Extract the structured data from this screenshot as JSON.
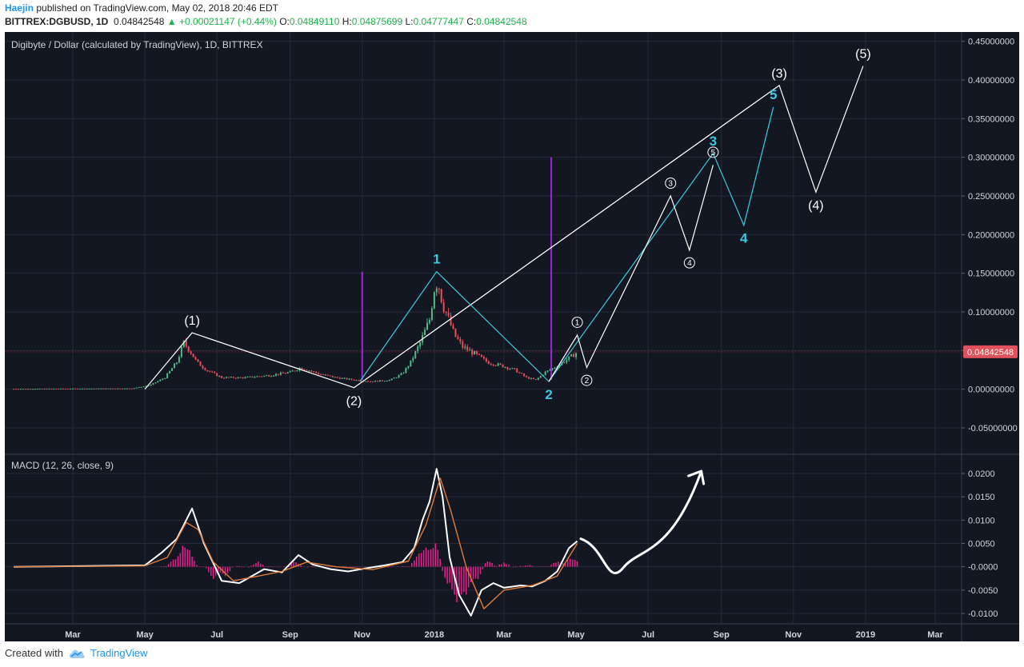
{
  "header": {
    "author": "Haejin",
    "published": "published on TradingView.com, May 02, 2018 20:46 EDT",
    "symbol": "BITTREX:DGBUSD, 1D",
    "last": "0.04842548",
    "change": "▲ +0.00021147 (+0.44%)",
    "open_label": "O:",
    "open": "0.04849110",
    "high_label": "H:",
    "high": "0.04875699",
    "low_label": "L:",
    "low": "0.04777447",
    "close_label": "C:",
    "close": "0.04842548"
  },
  "footer": {
    "created_with": "Created with",
    "brand": "TradingView",
    "logo_icon": "tradingview-cloud-icon"
  },
  "colors": {
    "background": "#131722",
    "grid": "#252a36",
    "cyan": "#3bc9e0",
    "white": "#ffffff",
    "purple": "#9c27d8",
    "price_badge": "#e0515c",
    "up_candle": "#53b987",
    "down_candle": "#eb4d5c",
    "macd_signal": "#e07b39",
    "histogram": "#e91e8c"
  },
  "chart_data": [
    {
      "type": "line",
      "title": "Digibyte / Dollar (calculated by TradingView), 1D, BITTREX",
      "x_ticks": [
        "Mar",
        "May",
        "Jul",
        "Sep",
        "Nov",
        "2018",
        "Mar",
        "May",
        "Jul",
        "Sep",
        "Nov",
        "2019",
        "Mar"
      ],
      "y_ticks": [
        "0.45000000",
        "0.40000000",
        "0.35000000",
        "0.30000000",
        "0.25000000",
        "0.20000000",
        "0.15000000",
        "0.10000000",
        "0.05000000",
        "0.00000000",
        "-0.05000000"
      ],
      "ylim": [
        -0.083,
        0.455
      ],
      "current_price": 0.04842548,
      "current_price_label": "0.04842548",
      "price_series": {
        "name": "DGBUSD",
        "x": [
          "2017-01-10",
          "2017-04-20",
          "2017-05-05",
          "2017-05-18",
          "2017-05-28",
          "2017-06-03",
          "2017-06-08",
          "2017-06-14",
          "2017-06-22",
          "2017-07-05",
          "2017-07-25",
          "2017-08-15",
          "2017-09-01",
          "2017-09-10",
          "2017-09-25",
          "2017-10-10",
          "2017-10-25",
          "2017-11-10",
          "2017-11-25",
          "2017-12-05",
          "2017-12-12",
          "2017-12-20",
          "2017-12-28",
          "2018-01-01",
          "2018-01-04",
          "2018-01-08",
          "2018-01-12",
          "2018-01-18",
          "2018-01-25",
          "2018-02-05",
          "2018-02-15",
          "2018-02-28",
          "2018-03-10",
          "2018-03-20",
          "2018-03-28",
          "2018-04-05",
          "2018-04-15",
          "2018-04-25",
          "2018-05-02"
        ],
        "close": [
          0.0005,
          0.001,
          0.005,
          0.015,
          0.035,
          0.06,
          0.05,
          0.035,
          0.025,
          0.015,
          0.015,
          0.018,
          0.022,
          0.028,
          0.02,
          0.015,
          0.012,
          0.01,
          0.012,
          0.02,
          0.035,
          0.06,
          0.09,
          0.13,
          0.14,
          0.11,
          0.095,
          0.07,
          0.055,
          0.045,
          0.035,
          0.03,
          0.025,
          0.015,
          0.012,
          0.022,
          0.03,
          0.04,
          0.048
        ]
      },
      "elliott_waves": [
        {
          "name": "primary",
          "color": "#ffffff",
          "x": [
            "2017-05-01",
            "2017-06-10",
            "2017-10-25",
            "2018-10-20",
            "2018-11-20",
            "2018-12-30"
          ],
          "y": [
            0.0,
            0.073,
            0.002,
            0.393,
            0.255,
            0.418
          ],
          "labels": [
            {
              "text": "(1)",
              "i": 1
            },
            {
              "text": "(2)",
              "i": 2
            },
            {
              "text": "(3)",
              "i": 3
            },
            {
              "text": "(4)",
              "i": 4
            },
            {
              "text": "(5)",
              "i": 5
            }
          ]
        },
        {
          "name": "intermediate",
          "color": "#3bc9e0",
          "x": [
            "2017-10-30",
            "2018-01-03",
            "2018-04-08",
            "2018-08-25",
            "2018-09-20",
            "2018-10-15"
          ],
          "y": [
            0.01,
            0.152,
            0.01,
            0.305,
            0.212,
            0.365
          ],
          "labels": [
            {
              "text": "1",
              "i": 1
            },
            {
              "text": "2",
              "i": 2
            },
            {
              "text": "3",
              "i": 3
            },
            {
              "text": "4",
              "i": 4
            },
            {
              "text": "5",
              "i": 5
            }
          ]
        },
        {
          "name": "minor",
          "color": "#ffffff",
          "x": [
            "2018-04-08",
            "2018-05-02",
            "2018-05-10",
            "2018-07-20",
            "2018-08-05",
            "2018-08-25"
          ],
          "y": [
            0.01,
            0.07,
            0.028,
            0.25,
            0.18,
            0.29
          ],
          "labels": [
            {
              "text": "1",
              "i": 1
            },
            {
              "text": "2",
              "i": 2
            },
            {
              "text": "3",
              "i": 3
            },
            {
              "text": "4",
              "i": 4
            },
            {
              "text": "5",
              "i": 5
            }
          ]
        }
      ],
      "channel_line": {
        "x": [
          "2017-10-25",
          "2018-10-20"
        ],
        "y": [
          0.002,
          0.393
        ]
      },
      "vertical_markers": [
        {
          "x": "2017-11-01",
          "y": [
            0.012,
            0.152
          ]
        },
        {
          "x": "2018-04-10",
          "y": [
            0.012,
            0.3
          ]
        }
      ]
    },
    {
      "type": "line",
      "title": "MACD (12, 26, close, 9)",
      "y_ticks": [
        "0.0200",
        "0.0150",
        "0.0100",
        "0.0050",
        "-0.0000",
        "-0.0050",
        "-0.0100"
      ],
      "ylim": [
        -0.0113,
        0.0238
      ],
      "series": [
        {
          "name": "MACD",
          "color": "#ffffff",
          "x": [
            "2017-01-10",
            "2017-05-01",
            "2017-05-15",
            "2017-05-28",
            "2017-06-10",
            "2017-06-20",
            "2017-07-05",
            "2017-07-20",
            "2017-08-10",
            "2017-08-25",
            "2017-09-08",
            "2017-09-20",
            "2017-10-05",
            "2017-10-20",
            "2017-11-05",
            "2017-11-20",
            "2017-12-05",
            "2017-12-15",
            "2017-12-22",
            "2017-12-28",
            "2018-01-03",
            "2018-01-08",
            "2018-01-14",
            "2018-01-22",
            "2018-02-01",
            "2018-02-10",
            "2018-02-20",
            "2018-03-01",
            "2018-03-15",
            "2018-03-25",
            "2018-04-05",
            "2018-04-15",
            "2018-04-25",
            "2018-05-02"
          ],
          "y": [
            0,
            0.0003,
            0.003,
            0.006,
            0.0125,
            0.005,
            -0.003,
            -0.0035,
            -0.0005,
            -0.0012,
            0.0025,
            0.0005,
            -0.0005,
            -0.001,
            -0.0003,
            0.0003,
            0.001,
            0.004,
            0.01,
            0.014,
            0.021,
            0.015,
            0.002,
            -0.006,
            -0.0105,
            -0.005,
            -0.0035,
            -0.0045,
            -0.004,
            -0.0042,
            -0.003,
            -0.001,
            0.004,
            0.0055
          ]
        },
        {
          "name": "Signal",
          "color": "#e07b39",
          "x": [
            "2017-01-10",
            "2017-05-01",
            "2017-05-20",
            "2017-06-05",
            "2017-06-15",
            "2017-06-28",
            "2017-07-15",
            "2017-08-05",
            "2017-08-25",
            "2017-09-15",
            "2017-10-10",
            "2017-11-10",
            "2017-12-10",
            "2017-12-25",
            "2018-01-06",
            "2018-01-15",
            "2018-01-28",
            "2018-02-12",
            "2018-03-01",
            "2018-03-25",
            "2018-04-15",
            "2018-05-02"
          ],
          "y": [
            0,
            0.0002,
            0.002,
            0.0095,
            0.008,
            0.001,
            -0.003,
            -0.002,
            -0.001,
            0.001,
            0,
            -0.0006,
            0.0012,
            0.009,
            0.019,
            0.012,
            0.0,
            -0.009,
            -0.005,
            -0.004,
            -0.002,
            0.005
          ]
        }
      ],
      "histogram": {
        "x": [
          "2017-05-25",
          "2017-06-02",
          "2017-06-08",
          "2017-06-28",
          "2017-07-08",
          "2017-08-05",
          "2017-09-05",
          "2017-12-18",
          "2017-12-25",
          "2018-01-02",
          "2018-01-12",
          "2018-01-20",
          "2018-01-28",
          "2018-02-06",
          "2018-02-16",
          "2018-03-01",
          "2018-03-20",
          "2018-04-15",
          "2018-04-25",
          "2018-05-02"
        ],
        "y": [
          0.0015,
          0.004,
          0.003,
          -0.0025,
          -0.002,
          0.001,
          0.0012,
          0.0025,
          0.004,
          0.005,
          -0.0035,
          -0.0075,
          -0.006,
          -0.003,
          0.0012,
          0.0008,
          0.0005,
          0.0012,
          0.0018,
          0.0012
        ]
      },
      "projection_arrow": {
        "x": [
          "2018-05-05",
          "2018-06-10",
          "2018-07-20",
          "2018-08-15"
        ],
        "y": [
          0.006,
          -0.0002,
          0.004,
          0.0205
        ]
      }
    }
  ]
}
